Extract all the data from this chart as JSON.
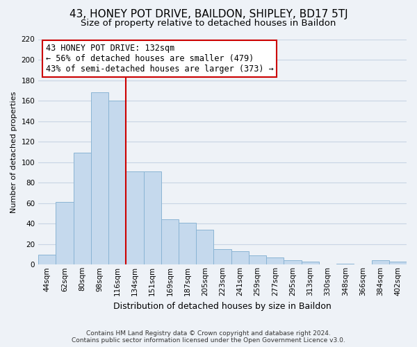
{
  "title": "43, HONEY POT DRIVE, BAILDON, SHIPLEY, BD17 5TJ",
  "subtitle": "Size of property relative to detached houses in Baildon",
  "xlabel": "Distribution of detached houses by size in Baildon",
  "ylabel": "Number of detached properties",
  "footer_line1": "Contains HM Land Registry data © Crown copyright and database right 2024.",
  "footer_line2": "Contains public sector information licensed under the Open Government Licence v3.0.",
  "bar_labels": [
    "44sqm",
    "62sqm",
    "80sqm",
    "98sqm",
    "116sqm",
    "134sqm",
    "151sqm",
    "169sqm",
    "187sqm",
    "205sqm",
    "223sqm",
    "241sqm",
    "259sqm",
    "277sqm",
    "295sqm",
    "313sqm",
    "330sqm",
    "348sqm",
    "366sqm",
    "384sqm",
    "402sqm"
  ],
  "bar_values": [
    10,
    61,
    109,
    168,
    160,
    91,
    91,
    44,
    41,
    34,
    15,
    13,
    9,
    7,
    4,
    3,
    0,
    1,
    0,
    4,
    3
  ],
  "bar_color": "#c5d9ed",
  "bar_edge_color": "#8ab4d4",
  "vline_x_index": 5,
  "vline_color": "#cc0000",
  "annotation_title": "43 HONEY POT DRIVE: 132sqm",
  "annotation_line2": "← 56% of detached houses are smaller (479)",
  "annotation_line3": "43% of semi-detached houses are larger (373) →",
  "annotation_box_facecolor": "#ffffff",
  "annotation_box_edgecolor": "#cc0000",
  "ylim": [
    0,
    220
  ],
  "yticks": [
    0,
    20,
    40,
    60,
    80,
    100,
    120,
    140,
    160,
    180,
    200,
    220
  ],
  "background_color": "#eef2f7",
  "grid_color": "#c8d4e4",
  "title_fontsize": 11,
  "subtitle_fontsize": 9.5,
  "xlabel_fontsize": 9,
  "ylabel_fontsize": 8,
  "tick_fontsize": 7.5,
  "annotation_fontsize": 8.5,
  "footer_fontsize": 6.5
}
